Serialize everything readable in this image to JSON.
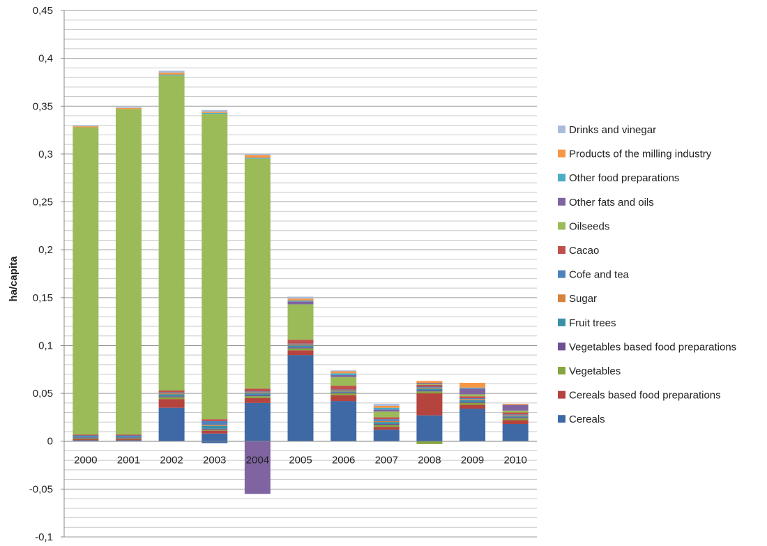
{
  "chart_data": {
    "type": "bar",
    "stacked": true,
    "title": "",
    "xlabel": "",
    "ylabel": "ha/capita",
    "ylim": [
      -0.1,
      0.45
    ],
    "yticks": [
      -0.1,
      -0.05,
      0,
      0.05,
      0.1,
      0.15,
      0.2,
      0.25,
      0.3,
      0.35,
      0.4,
      0.45
    ],
    "ytick_labels": [
      "-0,1",
      "-0,05",
      "0",
      "0,05",
      "0,1",
      "0,15",
      "0,2",
      "0,25",
      "0,3",
      "0,35",
      "0,4",
      "0,45"
    ],
    "minor_grid_step": 0.01,
    "grid": true,
    "legend_position": "right",
    "categories": [
      "2000",
      "2001",
      "2002",
      "2003",
      "2004",
      "2005",
      "2006",
      "2007",
      "2008",
      "2009",
      "2010"
    ],
    "series": [
      {
        "name": "Cereals",
        "color": "#3F69A5",
        "values": [
          0.001,
          0.001,
          0.035,
          0.008,
          0.04,
          0.09,
          0.042,
          0.012,
          0.027,
          0.034,
          0.018
        ]
      },
      {
        "name": "Cereals based food preparations",
        "color": "#B5443F",
        "values": [
          0.001,
          0.001,
          0.009,
          0.003,
          0.005,
          0.005,
          0.006,
          0.003,
          0.023,
          0.004,
          0.004
        ]
      },
      {
        "name": "Vegetables",
        "color": "#87A53F",
        "values": [
          0.001,
          0.001,
          0.002,
          0.001,
          0.002,
          0.002,
          0.002,
          0.002,
          0.002,
          0.002,
          0.002
        ]
      },
      {
        "name": "Vegetables based food preparations",
        "color": "#6F4F93",
        "values": [
          0.001,
          0.001,
          0.001,
          0.001,
          0.001,
          0.001,
          0.001,
          0.001,
          0.001,
          0.001,
          0.001
        ]
      },
      {
        "name": "Fruit trees",
        "color": "#3A90A8",
        "values": [
          0.001,
          0.001,
          0.002,
          0.003,
          0.002,
          0.002,
          0.001,
          0.002,
          0.002,
          0.002,
          0.001
        ]
      },
      {
        "name": "Sugar",
        "color": "#D7833D",
        "values": [
          0.0,
          0.0,
          0.001,
          0.001,
          0.001,
          0.001,
          0.001,
          0.001,
          0.001,
          0.001,
          0.001
        ]
      },
      {
        "name": "Cofe and tea",
        "color": "#4F81BD",
        "values": [
          0.001,
          0.001,
          0.001,
          0.004,
          0.001,
          0.001,
          0.001,
          0.002,
          0.001,
          0.001,
          0.001
        ]
      },
      {
        "name": "Cacao",
        "color": "#C0504D",
        "values": [
          0.001,
          0.001,
          0.002,
          0.002,
          0.003,
          0.004,
          0.004,
          0.002,
          0.002,
          0.002,
          0.002
        ]
      },
      {
        "name": "Oilseeds",
        "color": "#9BBB59",
        "values": [
          0.321,
          0.34,
          0.329,
          0.319,
          0.24,
          0.037,
          0.009,
          0.006,
          0.001,
          0.002,
          0.002
        ]
      },
      {
        "name": "Other fats and oils",
        "color": "#8064A2",
        "values": [
          0.0,
          0.0,
          0.0,
          0.0,
          -0.055,
          0.003,
          0.002,
          0.002,
          0.001,
          0.006,
          0.006
        ]
      },
      {
        "name": "Other food preparations",
        "color": "#4BACC6",
        "values": [
          0.0,
          0.0,
          0.001,
          0.001,
          0.001,
          0.001,
          0.002,
          0.002,
          0.0,
          0.001,
          0.0
        ]
      },
      {
        "name": "Products of the milling industry",
        "color": "#F79646",
        "values": [
          0.001,
          0.001,
          0.002,
          0.001,
          0.003,
          0.002,
          0.002,
          0.002,
          0.002,
          0.005,
          0.001
        ]
      },
      {
        "name": "Drinks and vinegar",
        "color": "#A9BCDC",
        "values": [
          0.001,
          0.001,
          0.002,
          0.002,
          0.001,
          0.002,
          0.001,
          0.002,
          0.0,
          0.0,
          0.0
        ]
      }
    ],
    "negative_adjustments": [
      {
        "category": "2003",
        "series": "Cereals",
        "value": -0.002
      },
      {
        "category": "2008",
        "series": "Vegetables",
        "value": -0.003
      }
    ]
  }
}
